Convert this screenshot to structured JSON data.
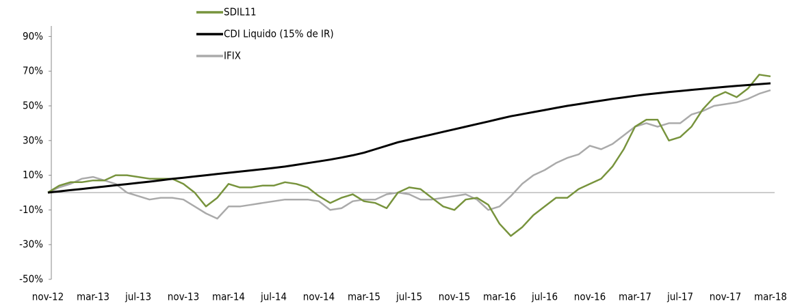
{
  "chart_data": {
    "type": "line",
    "categories": [
      "nov-12",
      null,
      null,
      null,
      "mar-13",
      null,
      null,
      null,
      "jul-13",
      null,
      null,
      null,
      "nov-13",
      null,
      null,
      null,
      "mar-14",
      null,
      null,
      null,
      "jul-14",
      null,
      null,
      null,
      "nov-14",
      null,
      null,
      null,
      "mar-15",
      null,
      null,
      null,
      "jul-15",
      null,
      null,
      null,
      "nov-15",
      null,
      null,
      null,
      "mar-16",
      null,
      null,
      null,
      "jul-16",
      null,
      null,
      null,
      "nov-16",
      null,
      null,
      null,
      "mar-17",
      null,
      null,
      null,
      "jul-17",
      null,
      null,
      null,
      "nov-17",
      null,
      null,
      null,
      "mar-18"
    ],
    "series": [
      {
        "name": "SDIL11",
        "color": "#77933c",
        "values": [
          0,
          4,
          6,
          6,
          7,
          7,
          10,
          10,
          9,
          8,
          8,
          8,
          5,
          0,
          -8,
          -3,
          5,
          3,
          3,
          4,
          4,
          6,
          5,
          3,
          -2,
          -6,
          -3,
          -1,
          -5,
          -6,
          -9,
          0,
          3,
          2,
          -3,
          -8,
          -10,
          -4,
          -3,
          -7,
          -18,
          -25,
          -20,
          -13,
          -8,
          -3,
          -3,
          2,
          5,
          8,
          15,
          25,
          38,
          42,
          42,
          30,
          32,
          38,
          48,
          55,
          58,
          55,
          60,
          68,
          67
        ]
      },
      {
        "name": "CDI Liquido (15% de IR)",
        "color": "#000000",
        "values": [
          0,
          0.7,
          1.4,
          2.1,
          2.8,
          3.5,
          4.2,
          4.9,
          5.6,
          6.3,
          7.1,
          7.9,
          8.6,
          9.3,
          10,
          10.7,
          11.4,
          12.1,
          12.8,
          13.5,
          14.2,
          15,
          16,
          17,
          18,
          19,
          20.2,
          21.5,
          23,
          25,
          27,
          29,
          30.5,
          32,
          33.5,
          35,
          36.5,
          38,
          39.5,
          41,
          42.5,
          44,
          45.2,
          46.4,
          47.6,
          48.8,
          50,
          51,
          52,
          53,
          54,
          54.9,
          55.8,
          56.6,
          57.3,
          58,
          58.6,
          59.2,
          59.8,
          60.4,
          61,
          61.5,
          62,
          62.5,
          63
        ]
      },
      {
        "name": "IFIX",
        "color": "#aaaaaa",
        "values": [
          0,
          3,
          5,
          8,
          9,
          7,
          5,
          0,
          -2,
          -4,
          -3,
          -3,
          -4,
          -8,
          -12,
          -15,
          -8,
          -8,
          -7,
          -6,
          -5,
          -4,
          -4,
          -4,
          -5,
          -10,
          -9,
          -5,
          -4,
          -4,
          -1,
          0,
          -1,
          -4,
          -4,
          -3,
          -2,
          -1,
          -4,
          -10,
          -8,
          -2,
          5,
          10,
          13,
          17,
          20,
          22,
          27,
          25,
          28,
          33,
          38,
          40,
          38,
          40,
          40,
          45,
          47,
          50,
          51,
          52,
          54,
          57,
          59
        ]
      }
    ],
    "ylim": [
      -50,
      100
    ],
    "yticks": [
      {
        "value": -50,
        "label": "-50%"
      },
      {
        "value": -30,
        "label": "-30%"
      },
      {
        "value": -10,
        "label": "-10%"
      },
      {
        "value": 10,
        "label": "10%"
      },
      {
        "value": 30,
        "label": "30%"
      },
      {
        "value": 50,
        "label": "50%"
      },
      {
        "value": 70,
        "label": "70%"
      },
      {
        "value": 90,
        "label": "90%"
      }
    ],
    "legend": "top"
  }
}
